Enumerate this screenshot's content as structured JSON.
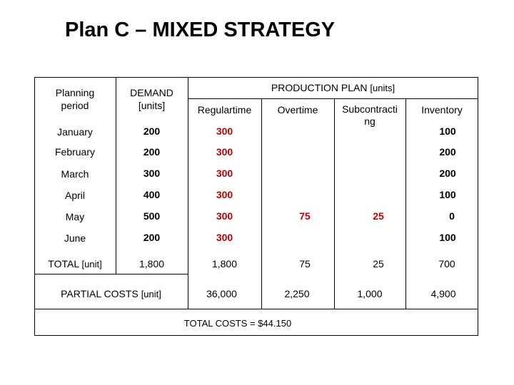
{
  "title": "Plan C – MIXED STRATEGY",
  "headers": {
    "period_line1": "Planning",
    "period_line2": "period",
    "demand_line1": "DEMAND",
    "demand_line2": "[units]",
    "production_plan": "PRODUCTION PLAN",
    "production_unit": "[units]",
    "regular": "Regulartime",
    "overtime": "Overtime",
    "subcontract_line1": "Subcontracti",
    "subcontract_line2": "ng",
    "inventory": "Inventory"
  },
  "rows": [
    {
      "period": "January",
      "demand": "200",
      "regular": "300",
      "overtime": "",
      "subcontract": "",
      "inventory": "100"
    },
    {
      "period": "February",
      "demand": "200",
      "regular": "300",
      "overtime": "",
      "subcontract": "",
      "inventory": "200"
    },
    {
      "period": "March",
      "demand": "300",
      "regular": "300",
      "overtime": "",
      "subcontract": "",
      "inventory": "200"
    },
    {
      "period": "April",
      "demand": "400",
      "regular": "300",
      "overtime": "",
      "subcontract": "",
      "inventory": "100"
    },
    {
      "period": "May",
      "demand": "500",
      "regular": "300",
      "overtime": "75",
      "subcontract": "25",
      "inventory": "0"
    },
    {
      "period": "June",
      "demand": "200",
      "regular": "300",
      "overtime": "",
      "subcontract": "",
      "inventory": "100"
    }
  ],
  "total": {
    "label": "TOTAL",
    "unit": "[unit]",
    "demand": "1,800",
    "regular": "1,800",
    "overtime": "75",
    "subcontract": "25",
    "inventory": "700"
  },
  "partial": {
    "label": "PARTIAL COSTS",
    "unit": "[unit]",
    "regular": "36,000",
    "overtime": "2,250",
    "subcontract": "1,000",
    "inventory": "4,900"
  },
  "total_costs": "TOTAL COSTS = $44.150",
  "colors": {
    "highlight": "#c00000"
  }
}
